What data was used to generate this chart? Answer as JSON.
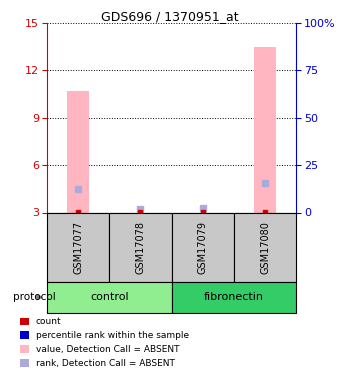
{
  "title": "GDS696 / 1370951_at",
  "samples": [
    "GSM17077",
    "GSM17078",
    "GSM17079",
    "GSM17080"
  ],
  "groups": [
    {
      "name": "control",
      "indices": [
        0,
        1
      ],
      "color": "#90EE90"
    },
    {
      "name": "fibronectin",
      "indices": [
        2,
        3
      ],
      "color": "#33CC66"
    }
  ],
  "ylim_left": [
    3,
    15
  ],
  "ylim_right": [
    0,
    100
  ],
  "yticks_left": [
    3,
    6,
    9,
    12,
    15
  ],
  "yticks_right": [
    0,
    25,
    50,
    75,
    100
  ],
  "ytick_labels_right": [
    "0",
    "25",
    "50",
    "75",
    "100%"
  ],
  "pink_bars": [
    10.7,
    null,
    null,
    13.5
  ],
  "pink_bar_color": "#FFB6C1",
  "blue_rank_values": [
    4.5,
    3.25,
    3.3,
    4.9
  ],
  "blue_rank_color": "#AAAADD",
  "red_count_values": [
    3.05,
    3.05,
    3.05,
    3.05
  ],
  "red_count_color": "#CC0000",
  "bar_base": 3,
  "grid_color": "#000000",
  "sample_label_area_color": "#C8C8C8",
  "legend_items": [
    {
      "color": "#CC0000",
      "label": "count"
    },
    {
      "color": "#0000CC",
      "label": "percentile rank within the sample"
    },
    {
      "color": "#FFB6C1",
      "label": "value, Detection Call = ABSENT"
    },
    {
      "color": "#AAAADD",
      "label": "rank, Detection Call = ABSENT"
    }
  ],
  "protocol_label": "protocol",
  "left_axis_color": "#CC0000",
  "right_axis_color": "#0000CC"
}
